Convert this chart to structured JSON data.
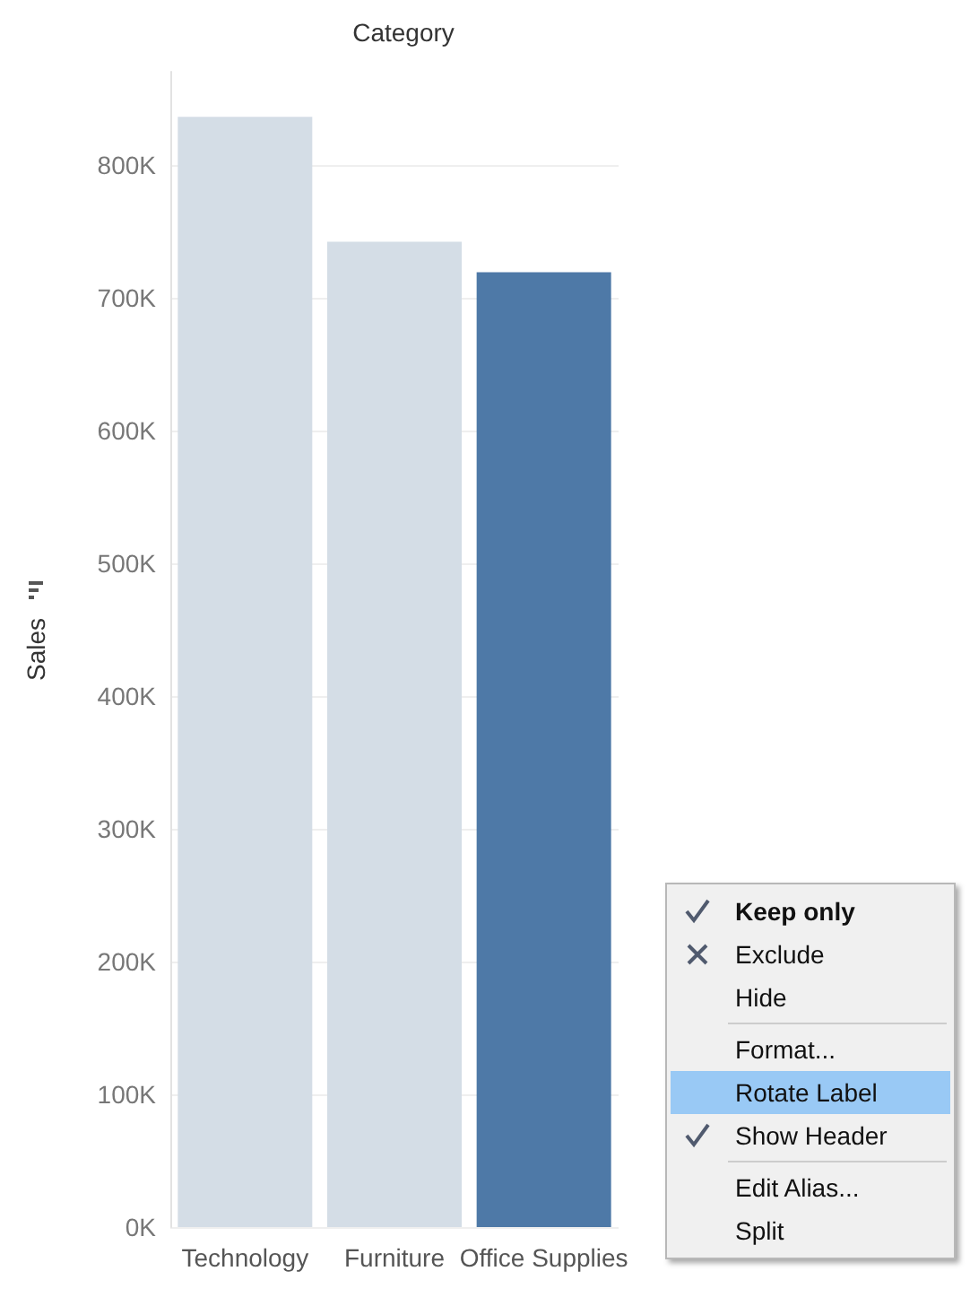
{
  "chart_data": {
    "type": "bar",
    "title": "Category",
    "ylabel": "Sales",
    "categories": [
      "Technology",
      "Furniture",
      "Office Supplies"
    ],
    "values": [
      836000,
      742000,
      719000
    ],
    "colors": [
      "#d4dde6",
      "#d4dde6",
      "#4e79a7"
    ],
    "ylim": [
      0,
      870000
    ],
    "yticks": [
      {
        "value": 0,
        "label": "0K"
      },
      {
        "value": 100000,
        "label": "100K"
      },
      {
        "value": 200000,
        "label": "200K"
      },
      {
        "value": 300000,
        "label": "300K"
      },
      {
        "value": 400000,
        "label": "400K"
      },
      {
        "value": 500000,
        "label": "500K"
      },
      {
        "value": 600000,
        "label": "600K"
      },
      {
        "value": 700000,
        "label": "700K"
      },
      {
        "value": 800000,
        "label": "800K"
      }
    ],
    "grid": "y",
    "annotations": [
      "Keep only",
      "Exclude",
      "Hide",
      "Format...",
      "Rotate Label",
      "Show Header",
      "Edit Alias...",
      "Split"
    ]
  }
}
